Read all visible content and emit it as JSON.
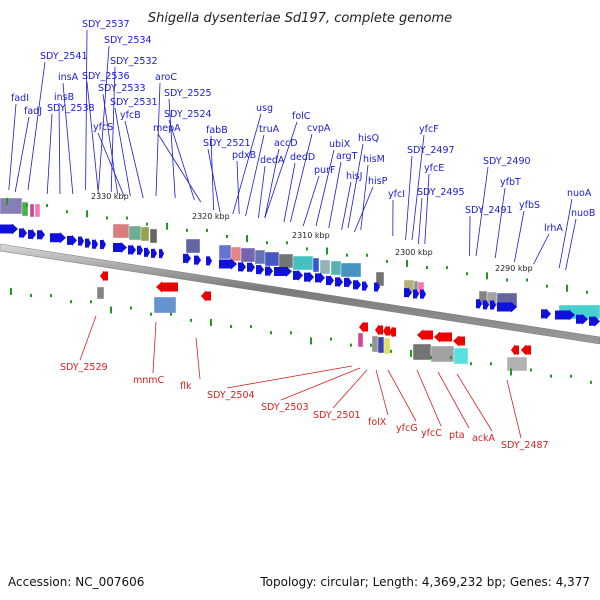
{
  "title": "Shigella dysenteriae Sd197, complete genome",
  "footer": {
    "accession": "Accession: NC_007606",
    "summary": "Topology: circular; Length: 4,369,232 bp; Genes: 4,377"
  },
  "scale_labels": [
    "2330 kbp",
    "2320 kbp",
    "2310 kbp",
    "2300 kbp",
    "2290 kbp"
  ],
  "top_strand_genes": [
    "SDY_2537",
    "SDY_2534",
    "SDY_2541",
    "SDY_2532",
    "insA",
    "SDY_2536",
    "aroC",
    "fadI",
    "insB",
    "SDY_2533",
    "SDY_2525",
    "fadJ",
    "SDY_2538",
    "SDY_2531",
    "usg",
    "yfcB",
    "SDY_2524",
    "folC",
    "truA",
    "yfcS",
    "mepA",
    "fabB",
    "cvpA",
    "accD",
    "ubiX",
    "hisQ",
    "SDY_2521",
    "pdxB",
    "dedD",
    "argT",
    "yfcF",
    "dedA",
    "hisM",
    "SDY_2497",
    "purF",
    "hisJ",
    "yfcE",
    "SDY_2490",
    "hisP",
    "yfcI",
    "SDY_2495",
    "yfbT",
    "nuoA",
    "SDY_2491",
    "yfbS",
    "nuoB",
    "lrhA"
  ],
  "bottom_strand_genes": [
    "SDY_2529",
    "mnmC",
    "flk",
    "SDY_2504",
    "SDY_2503",
    "SDY_2501",
    "folX",
    "yfcG",
    "yfcC",
    "pta",
    "ackA",
    "SDY_2487"
  ]
}
